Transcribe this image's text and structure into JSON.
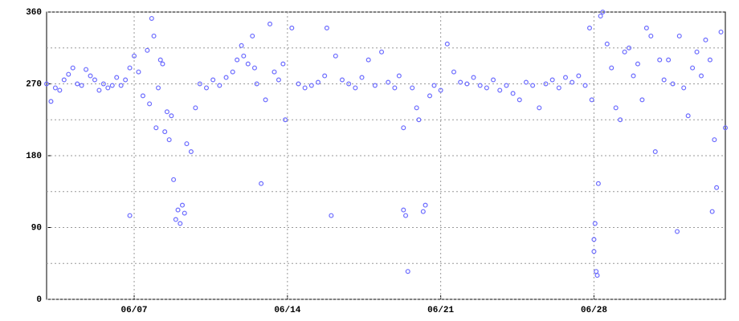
{
  "chart_data": {
    "type": "scatter",
    "color": "#6b6bff",
    "xlim": [
      3,
      34
    ],
    "xticks": [
      {
        "value": 7,
        "label": "06/07"
      },
      {
        "value": 14,
        "label": "06/14"
      },
      {
        "value": 21,
        "label": "06/21"
      },
      {
        "value": 28,
        "label": "06/28"
      }
    ],
    "ylim": [
      0,
      360
    ],
    "yticks": [
      0,
      90,
      180,
      270,
      360
    ],
    "y_minor_gridlines": [
      45,
      135,
      225,
      315
    ],
    "grid": true,
    "x": [
      3.0,
      3.2,
      3.4,
      3.6,
      3.8,
      4.0,
      4.2,
      4.4,
      4.6,
      4.8,
      5.0,
      5.2,
      5.4,
      5.6,
      5.8,
      6.0,
      6.2,
      6.4,
      6.6,
      6.8,
      6.8,
      7.0,
      7.2,
      7.4,
      7.6,
      7.7,
      7.8,
      7.9,
      8.0,
      8.1,
      8.2,
      8.3,
      8.4,
      8.5,
      8.6,
      8.7,
      8.8,
      8.9,
      9.0,
      9.1,
      9.2,
      9.3,
      9.4,
      9.6,
      9.8,
      10.0,
      10.3,
      10.6,
      10.9,
      11.2,
      11.5,
      11.7,
      11.9,
      12.0,
      12.2,
      12.4,
      12.5,
      12.6,
      12.8,
      13.0,
      13.2,
      13.4,
      13.6,
      13.8,
      13.9,
      14.2,
      14.5,
      14.8,
      15.1,
      15.4,
      15.7,
      15.8,
      16.0,
      16.2,
      16.5,
      16.8,
      17.1,
      17.4,
      17.7,
      18.0,
      18.3,
      18.6,
      18.9,
      19.1,
      19.3,
      19.3,
      19.4,
      19.5,
      19.7,
      19.9,
      20.0,
      20.2,
      20.3,
      20.5,
      20.7,
      21.0,
      21.3,
      21.6,
      21.9,
      22.2,
      22.5,
      22.8,
      23.1,
      23.4,
      23.7,
      24.0,
      24.3,
      24.6,
      24.9,
      25.2,
      25.5,
      25.8,
      26.1,
      26.4,
      26.7,
      27.0,
      27.3,
      27.6,
      27.8,
      27.9,
      28.0,
      28.0,
      28.05,
      28.1,
      28.15,
      28.2,
      28.3,
      28.4,
      28.6,
      28.8,
      29.0,
      29.2,
      29.4,
      29.6,
      29.8,
      30.0,
      30.2,
      30.4,
      30.6,
      30.8,
      31.0,
      31.2,
      31.4,
      31.6,
      31.8,
      31.9,
      32.1,
      32.3,
      32.5,
      32.7,
      32.9,
      33.1,
      33.3,
      33.4,
      33.5,
      33.6,
      33.8,
      34.0
    ],
    "values": [
      270,
      248,
      265,
      262,
      275,
      282,
      290,
      270,
      268,
      288,
      280,
      275,
      262,
      270,
      265,
      268,
      278,
      268,
      275,
      105,
      290,
      305,
      285,
      255,
      312,
      245,
      352,
      330,
      215,
      265,
      300,
      295,
      210,
      235,
      200,
      230,
      150,
      100,
      112,
      95,
      118,
      108,
      195,
      185,
      240,
      270,
      265,
      275,
      268,
      278,
      285,
      300,
      318,
      305,
      295,
      330,
      290,
      270,
      145,
      250,
      345,
      285,
      275,
      295,
      225,
      340,
      270,
      265,
      268,
      272,
      280,
      340,
      105,
      305,
      275,
      270,
      265,
      278,
      300,
      268,
      310,
      272,
      265,
      280,
      215,
      112,
      105,
      35,
      265,
      240,
      225,
      110,
      118,
      255,
      268,
      262,
      320,
      285,
      272,
      270,
      278,
      268,
      265,
      275,
      262,
      268,
      258,
      250,
      272,
      268,
      240,
      270,
      275,
      265,
      278,
      272,
      280,
      268,
      340,
      250,
      60,
      75,
      95,
      35,
      30,
      145,
      355,
      360,
      320,
      290,
      240,
      225,
      310,
      315,
      280,
      295,
      250,
      340,
      330,
      185,
      300,
      275,
      300,
      270,
      85,
      330,
      265,
      230,
      290,
      310,
      280,
      325,
      300,
      110,
      200,
      140,
      335,
      215
    ]
  }
}
